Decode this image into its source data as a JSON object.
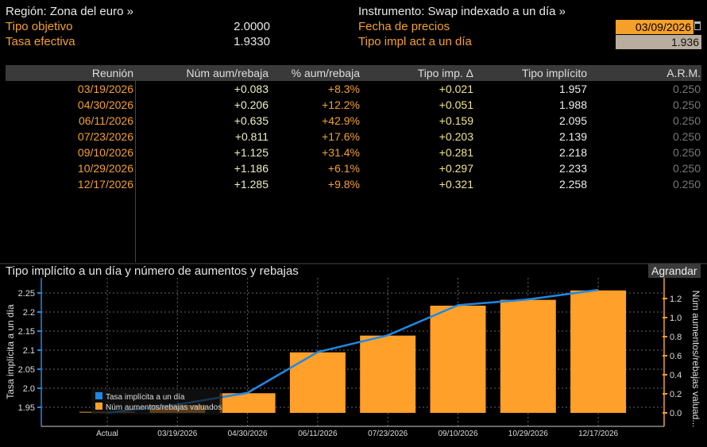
{
  "header": {
    "region": "Región: Zona del euro »",
    "instrument": "Instrumento: Swap indexado a un día »",
    "tipo_objetivo_label": "Tipo objetivo",
    "tipo_objetivo_value": "2.0000",
    "tasa_efectiva_label": "Tasa efectiva",
    "tasa_efectiva_value": "1.9330",
    "fecha_precios_label": "Fecha de precios",
    "fecha_precios_value": "03/09/2026",
    "tipo_impl_label": "Tipo impl act a un día",
    "tipo_impl_value": "1.936"
  },
  "table": {
    "columns": [
      "Reunión",
      "Núm aum/rebaja",
      "% aum/rebaja",
      "Tipo imp. Δ",
      "Tipo implícito",
      "A.R.M."
    ],
    "rows": [
      [
        "03/19/2026",
        "+0.083",
        "+8.3%",
        "+0.021",
        "1.957",
        "0.250"
      ],
      [
        "04/30/2026",
        "+0.206",
        "+12.2%",
        "+0.051",
        "1.988",
        "0.250"
      ],
      [
        "06/11/2026",
        "+0.635",
        "+42.9%",
        "+0.159",
        "2.095",
        "0.250"
      ],
      [
        "07/23/2026",
        "+0.811",
        "+17.6%",
        "+0.203",
        "2.139",
        "0.250"
      ],
      [
        "09/10/2026",
        "+1.125",
        "+31.4%",
        "+0.281",
        "2.218",
        "0.250"
      ],
      [
        "10/29/2026",
        "+1.186",
        "+6.1%",
        "+0.297",
        "2.233",
        "0.250"
      ],
      [
        "12/17/2026",
        "+1.285",
        "+9.8%",
        "+0.321",
        "2.258",
        "0.250"
      ]
    ]
  },
  "colors": {
    "orange": "#f5a02a",
    "blue": "#1e88e5",
    "bar": "#ffa02a",
    "header_bg": "#3a3a3a"
  },
  "chart_data": {
    "type": "bar+line",
    "title": "Tipo implícito a un día y número de aumentos y rebajas",
    "expand_label": "Agrandar",
    "categories": [
      "Actual",
      "03/19/2026",
      "04/30/2026",
      "06/11/2026",
      "07/23/2026",
      "09/10/2026",
      "10/29/2026",
      "12/17/2026"
    ],
    "series": [
      {
        "name": "Tasa implícita a un día",
        "type": "line",
        "axis": "left",
        "values": [
          1.936,
          1.957,
          1.988,
          2.095,
          2.139,
          2.218,
          2.233,
          2.258
        ]
      },
      {
        "name": "Núm aumentos/rebajas valuados",
        "type": "bar",
        "axis": "right",
        "values": [
          0,
          0.083,
          0.206,
          0.635,
          0.811,
          1.125,
          1.186,
          1.285
        ]
      }
    ],
    "ylabel_left": "Tasa implícita a un día",
    "ylabel_right": "Núm aumentos/rebajas valuad...",
    "yticks_left": [
      "1.95",
      "2.0",
      "2.05",
      "2.1",
      "2.15",
      "2.2",
      "2.25"
    ],
    "yticks_right": [
      "0.0",
      "0.2",
      "0.4",
      "0.6",
      "0.8",
      "1.0",
      "1.2"
    ],
    "ylim_left": [
      1.9,
      2.29
    ],
    "ylim_right": [
      -0.14,
      1.42
    ],
    "grid": true,
    "legend_position": "bottom-left"
  }
}
